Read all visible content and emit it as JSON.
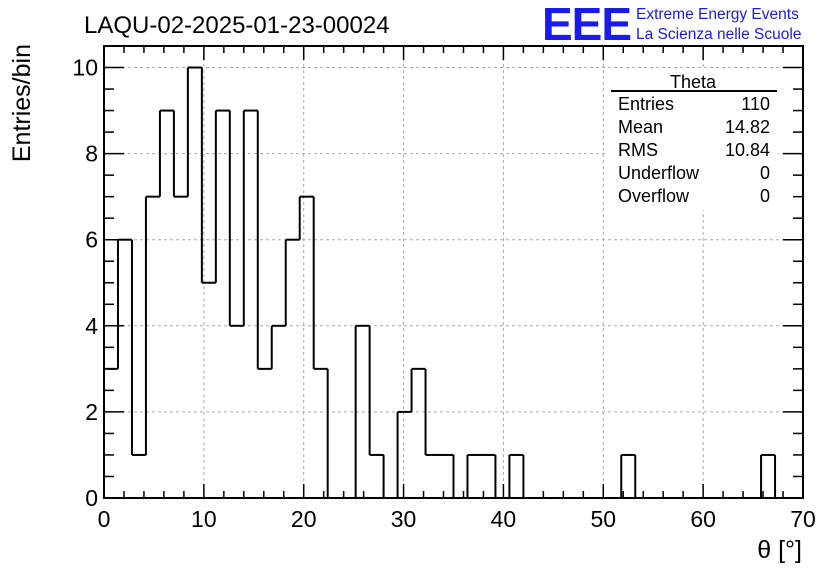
{
  "chart_data": {
    "type": "bar",
    "title": "LAQU-02-2025-01-23-00024",
    "xlabel": "θ [°]",
    "ylabel": "Entries/bin",
    "xlim": [
      0,
      70
    ],
    "ylim": [
      0,
      10.5
    ],
    "x_ticks": [
      0,
      10,
      20,
      30,
      40,
      50,
      60,
      70
    ],
    "y_ticks": [
      0,
      2,
      4,
      6,
      8,
      10
    ],
    "grid": true,
    "bin_width": 1.4,
    "bin_edges_start": 0,
    "values": [
      3,
      6,
      1,
      7,
      9,
      7,
      10,
      5,
      9,
      4,
      9,
      3,
      4,
      6,
      7,
      3,
      0,
      0,
      4,
      1,
      0,
      2,
      3,
      1,
      1,
      0,
      1,
      1,
      0,
      1,
      0,
      0,
      0,
      0,
      0,
      0,
      0,
      1,
      0,
      0,
      0,
      0,
      0,
      0,
      0,
      0,
      0,
      1,
      0
    ]
  },
  "stats_box": {
    "title": "Theta",
    "rows": [
      {
        "label": "Entries",
        "value": "110"
      },
      {
        "label": "Mean",
        "value": "14.82"
      },
      {
        "label": "RMS",
        "value": "10.84"
      },
      {
        "label": "Underflow",
        "value": "0"
      },
      {
        "label": "Overflow",
        "value": "0"
      }
    ]
  },
  "logo": {
    "text": "EEE",
    "line1": "Extreme Energy Events",
    "line2": "La Scienza nelle Scuole",
    "color": "#1a1aee"
  }
}
